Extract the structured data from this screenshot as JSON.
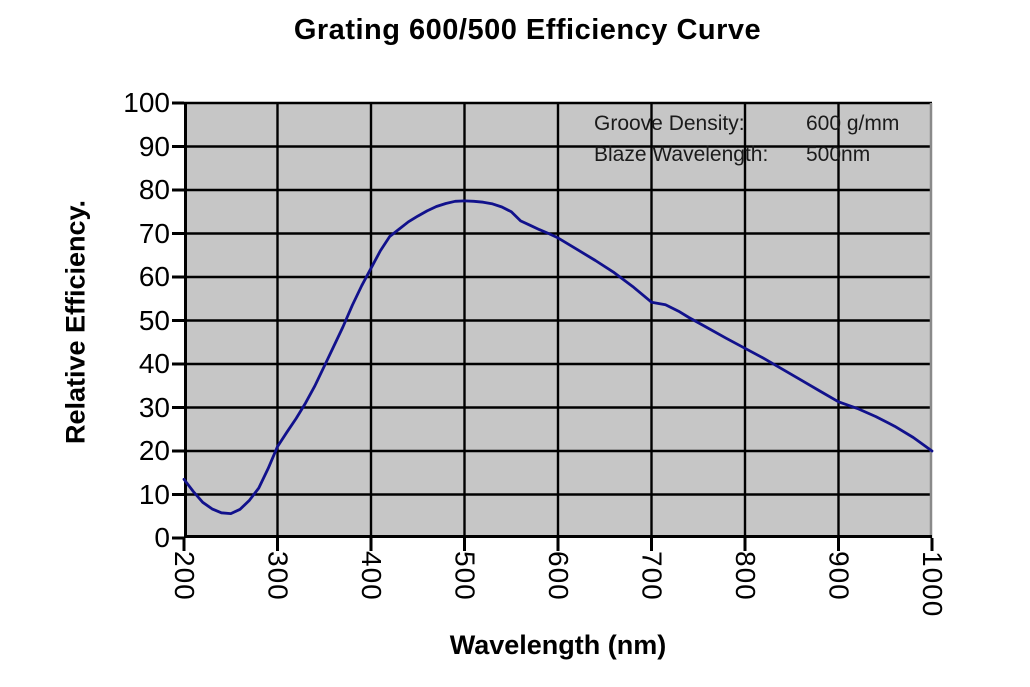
{
  "chart_data": {
    "type": "line",
    "title": "Grating 600/500 Efficiency Curve",
    "xlabel": "Wavelength (nm)",
    "ylabel": "Relative Efficiency.",
    "xlim": [
      200,
      1000
    ],
    "ylim": [
      0,
      100
    ],
    "x_ticks": [
      200,
      300,
      400,
      500,
      600,
      700,
      800,
      900,
      1000
    ],
    "y_ticks": [
      0,
      10,
      20,
      30,
      40,
      50,
      60,
      70,
      80,
      90,
      100
    ],
    "grid": true,
    "legend_position": "none",
    "colors": {
      "plot_background": "#c6c6c6",
      "grid": "#000000",
      "line": "#11118c",
      "axis": "#000000",
      "plot_border": "#8a8a8a",
      "annotation_text": "#1b1b1b"
    },
    "annotations": [
      {
        "label": "Groove Density:",
        "value": "600 g/mm"
      },
      {
        "label": "Blaze Wavelength:",
        "value": "500nm"
      }
    ],
    "series": [
      {
        "name": "relative-efficiency",
        "points": [
          [
            200,
            13.5
          ],
          [
            210,
            10.7
          ],
          [
            220,
            8.2
          ],
          [
            230,
            6.7
          ],
          [
            240,
            5.8
          ],
          [
            250,
            5.6
          ],
          [
            260,
            6.6
          ],
          [
            270,
            8.7
          ],
          [
            280,
            11.5
          ],
          [
            290,
            16
          ],
          [
            300,
            21
          ],
          [
            310,
            24.3
          ],
          [
            320,
            27.5
          ],
          [
            330,
            31
          ],
          [
            340,
            35
          ],
          [
            350,
            39.5
          ],
          [
            360,
            44
          ],
          [
            370,
            48.5
          ],
          [
            380,
            53.5
          ],
          [
            390,
            58
          ],
          [
            400,
            62
          ],
          [
            410,
            66
          ],
          [
            420,
            69.3
          ],
          [
            430,
            71
          ],
          [
            440,
            72.7
          ],
          [
            450,
            74
          ],
          [
            460,
            75.2
          ],
          [
            470,
            76.2
          ],
          [
            480,
            76.9
          ],
          [
            490,
            77.4
          ],
          [
            500,
            77.5
          ],
          [
            510,
            77.4
          ],
          [
            520,
            77.2
          ],
          [
            530,
            76.8
          ],
          [
            540,
            76.1
          ],
          [
            550,
            75
          ],
          [
            560,
            72.9
          ],
          [
            570,
            71.9
          ],
          [
            580,
            70.9
          ],
          [
            590,
            70
          ],
          [
            600,
            69
          ],
          [
            620,
            66.4
          ],
          [
            640,
            63.8
          ],
          [
            660,
            61
          ],
          [
            680,
            57.8
          ],
          [
            700,
            54.2
          ],
          [
            715,
            53.6
          ],
          [
            730,
            52
          ],
          [
            740,
            50.7
          ],
          [
            760,
            48.3
          ],
          [
            780,
            45.9
          ],
          [
            800,
            43.6
          ],
          [
            820,
            41.3
          ],
          [
            840,
            38.8
          ],
          [
            860,
            36.3
          ],
          [
            880,
            33.8
          ],
          [
            900,
            31.3
          ],
          [
            920,
            29.8
          ],
          [
            940,
            27.9
          ],
          [
            960,
            25.7
          ],
          [
            980,
            23.1
          ],
          [
            1000,
            20
          ]
        ]
      }
    ]
  }
}
